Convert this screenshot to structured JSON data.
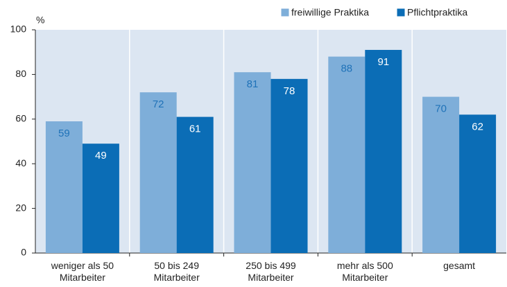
{
  "chart_data": {
    "type": "bar",
    "unit_label": "%",
    "categories": [
      "weniger als 50\nMitarbeiter",
      "50 bis 249\nMitarbeiter",
      "250 bis 499\nMitarbeiter",
      "mehr als 500\nMitarbeiter",
      "gesamt"
    ],
    "series": [
      {
        "name": "freiwillige Praktika",
        "color": "#7eaed9",
        "label_color": "#1f72b8",
        "values": [
          59,
          72,
          81,
          88,
          70
        ]
      },
      {
        "name": "Pflichtpraktika",
        "color": "#0b6db6",
        "label_color": "#ffffff",
        "values": [
          49,
          61,
          78,
          91,
          62
        ]
      }
    ],
    "ylim": [
      0,
      100
    ],
    "yticks": [
      0,
      20,
      40,
      60,
      80,
      100
    ],
    "plot_background": "#dce6f2",
    "legend": "top-right"
  }
}
